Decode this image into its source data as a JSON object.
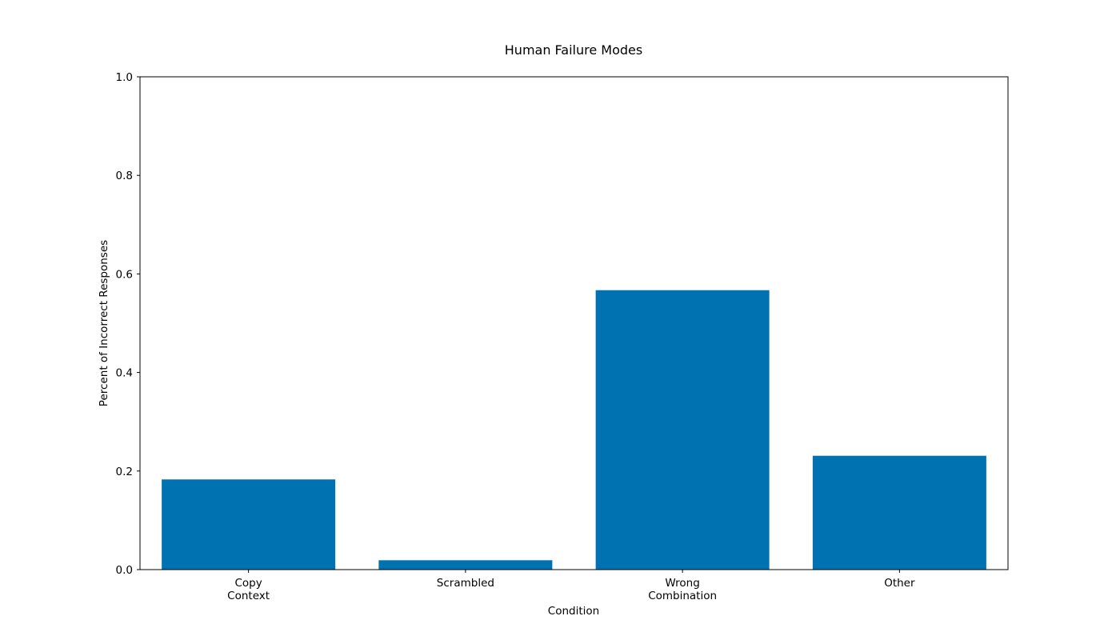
{
  "chart_data": {
    "type": "bar",
    "title": "Human Failure Modes",
    "xlabel": "Condition",
    "ylabel": "Percent of Incorrect Responses",
    "categories": [
      [
        "Copy",
        "Context"
      ],
      [
        "Scrambled"
      ],
      [
        "Wrong",
        "Combination"
      ],
      [
        "Other"
      ]
    ],
    "values": [
      0.183,
      0.019,
      0.567,
      0.231
    ],
    "ylim": [
      0,
      1.0
    ],
    "yticks": [
      "0.0",
      "0.2",
      "0.4",
      "0.6",
      "0.8",
      "1.0"
    ],
    "ytick_values": [
      0,
      0.2,
      0.4,
      0.6,
      0.8,
      1.0
    ],
    "bar_color": "#0072b2",
    "grid": false,
    "legend": false
  }
}
